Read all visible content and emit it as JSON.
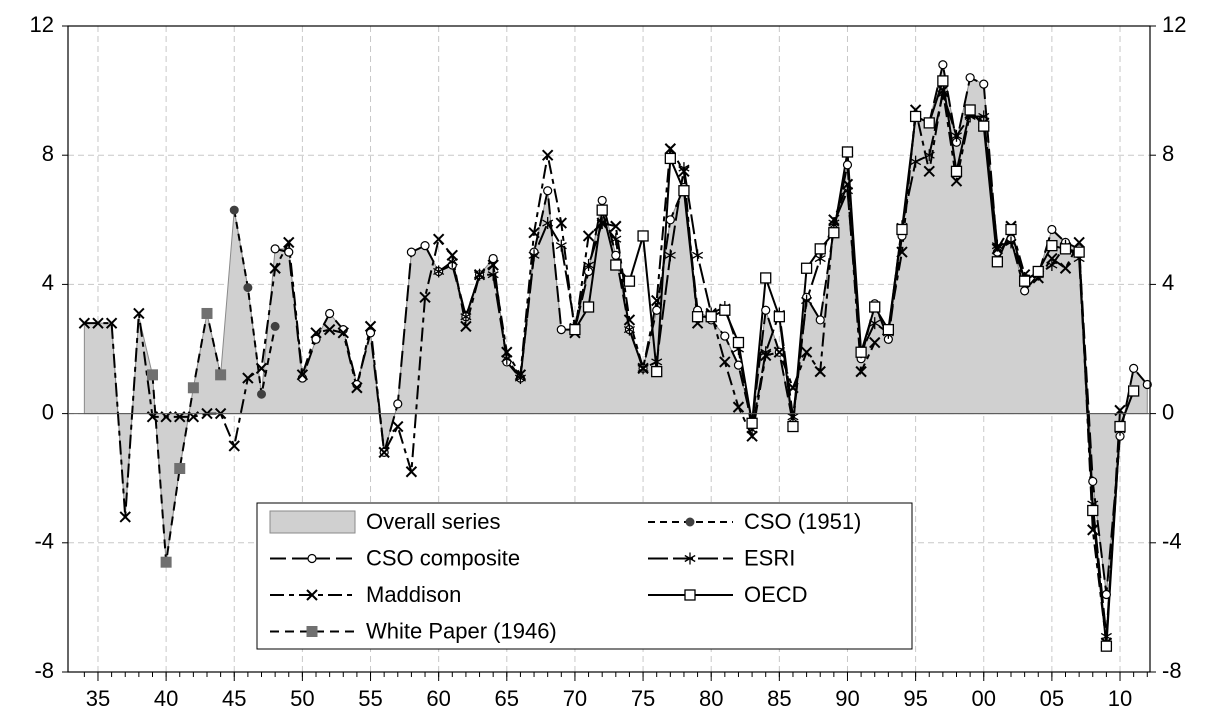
{
  "chart_data": {
    "type": "line",
    "x": [
      1934,
      1935,
      1936,
      1937,
      1938,
      1939,
      1940,
      1941,
      1942,
      1943,
      1944,
      1945,
      1946,
      1947,
      1948,
      1949,
      1950,
      1951,
      1952,
      1953,
      1954,
      1955,
      1956,
      1957,
      1958,
      1959,
      1960,
      1961,
      1962,
      1963,
      1964,
      1965,
      1966,
      1967,
      1968,
      1969,
      1970,
      1971,
      1972,
      1973,
      1974,
      1975,
      1976,
      1977,
      1978,
      1979,
      1980,
      1981,
      1982,
      1983,
      1984,
      1985,
      1986,
      1987,
      1988,
      1989,
      1990,
      1991,
      1992,
      1993,
      1994,
      1995,
      1996,
      1997,
      1998,
      1999,
      2000,
      2001,
      2002,
      2003,
      2004,
      2005,
      2006,
      2007,
      2008,
      2009,
      2010,
      2011,
      2012
    ],
    "xlim": [
      1932.8,
      2012.2
    ],
    "xticks": [
      {
        "value": 1935,
        "label": "35"
      },
      {
        "value": 1940,
        "label": "40"
      },
      {
        "value": 1945,
        "label": "45"
      },
      {
        "value": 1950,
        "label": "50"
      },
      {
        "value": 1955,
        "label": "55"
      },
      {
        "value": 1960,
        "label": "60"
      },
      {
        "value": 1965,
        "label": "65"
      },
      {
        "value": 1970,
        "label": "70"
      },
      {
        "value": 1975,
        "label": "75"
      },
      {
        "value": 1980,
        "label": "80"
      },
      {
        "value": 1985,
        "label": "85"
      },
      {
        "value": 1990,
        "label": "90"
      },
      {
        "value": 1995,
        "label": "95"
      },
      {
        "value": 2000,
        "label": "00"
      },
      {
        "value": 2005,
        "label": "05"
      },
      {
        "value": 2010,
        "label": "10"
      }
    ],
    "ylim": [
      -8,
      12
    ],
    "yticks": [
      -8,
      -4,
      0,
      4,
      8,
      12
    ],
    "y2lim": [
      -8,
      12
    ],
    "y2ticks": [
      -8,
      -4,
      0,
      4,
      8,
      12
    ],
    "grid": true,
    "legend": "lower-center",
    "series": [
      {
        "name": "Overall series",
        "color": "#d0d0d0",
        "fill": true,
        "values": [
          2.8,
          2.8,
          2.8,
          -3.2,
          3.0,
          1.2,
          -4.6,
          -1.7,
          0.8,
          3.1,
          1.2,
          6.3,
          3.9,
          0.6,
          5.1,
          5.1,
          1.1,
          2.3,
          3.1,
          2.6,
          0.9,
          2.5,
          -1.2,
          0.3,
          5.0,
          5.2,
          4.4,
          4.6,
          3.0,
          4.3,
          4.8,
          1.6,
          1.1,
          5.0,
          6.9,
          2.6,
          2.6,
          4.4,
          6.6,
          4.9,
          2.6,
          1.4,
          3.2,
          6.0,
          7.0,
          3.2,
          2.9,
          2.4,
          1.5,
          -0.3,
          3.2,
          1.9,
          -0.3,
          3.6,
          2.9,
          5.7,
          7.7,
          1.7,
          3.4,
          2.3,
          5.5,
          9.2,
          9.0,
          10.8,
          8.4,
          10.4,
          10.2,
          5.0,
          5.4,
          3.8,
          4.3,
          5.7,
          5.3,
          5.1,
          -2.1,
          -5.6,
          -0.7,
          1.4,
          0.9
        ]
      },
      {
        "name": "CSO (1951)",
        "color": "#404040",
        "dash": "7,5",
        "marker": "dot",
        "values": [
          null,
          null,
          null,
          null,
          null,
          null,
          null,
          null,
          null,
          null,
          null,
          6.3,
          3.9,
          0.6,
          2.7,
          null,
          null,
          null,
          null,
          null,
          null,
          null,
          null,
          null,
          null,
          null,
          null,
          null,
          null,
          null,
          null,
          null,
          null,
          null,
          null,
          null,
          null,
          null,
          null,
          null,
          null,
          null,
          null,
          null,
          null,
          null,
          null,
          null,
          null,
          null,
          null,
          null,
          null,
          null,
          null,
          null,
          null,
          null,
          null,
          null,
          null,
          null,
          null,
          null,
          null,
          null,
          null,
          null,
          null,
          null,
          null,
          null,
          null,
          null,
          null,
          null,
          null,
          null,
          null
        ]
      },
      {
        "name": "CSO composite",
        "color": "#000000",
        "dash": "16,6",
        "marker": "circle",
        "values": [
          null,
          null,
          null,
          null,
          null,
          null,
          null,
          null,
          null,
          null,
          null,
          null,
          null,
          null,
          5.1,
          5.0,
          1.1,
          2.3,
          3.1,
          2.6,
          0.9,
          2.5,
          -1.2,
          0.3,
          5.0,
          5.2,
          4.4,
          4.6,
          3.0,
          4.3,
          4.8,
          1.6,
          1.1,
          5.0,
          6.9,
          2.6,
          2.6,
          4.4,
          6.6,
          4.9,
          2.6,
          1.4,
          3.2,
          6.0,
          7.0,
          3.2,
          2.9,
          2.4,
          1.5,
          -0.3,
          3.2,
          1.9,
          -0.3,
          3.6,
          2.9,
          5.7,
          7.7,
          1.7,
          3.4,
          2.3,
          5.5,
          9.2,
          9.0,
          10.8,
          8.4,
          10.4,
          10.2,
          5.0,
          5.4,
          3.8,
          4.3,
          5.7,
          5.3,
          5.1,
          -2.1,
          -5.6,
          -0.7,
          1.4,
          0.9
        ]
      },
      {
        "name": "ESRI",
        "color": "#000000",
        "dash": "20,5",
        "marker": "star",
        "values": [
          null,
          null,
          null,
          null,
          null,
          null,
          null,
          null,
          null,
          null,
          null,
          null,
          null,
          null,
          null,
          null,
          null,
          null,
          null,
          null,
          null,
          null,
          null,
          null,
          null,
          null,
          4.4,
          4.7,
          3.0,
          4.3,
          4.3,
          1.7,
          1.1,
          4.9,
          5.9,
          5.2,
          2.7,
          4.6,
          5.9,
          5.4,
          2.6,
          1.4,
          1.6,
          4.9,
          7.6,
          4.9,
          3.1,
          3.3,
          2.0,
          -0.5,
          1.9,
          3.1,
          -0.1,
          3.5,
          4.8,
          5.9,
          6.9,
          1.9,
          2.8,
          2.5,
          5.8,
          7.8,
          8.0,
          9.9,
          8.6,
          9.2,
          9.2,
          5.2,
          5.3,
          4.2,
          4.3,
          4.6,
          5.2,
          4.8,
          -2.8,
          -6.9,
          -0.5,
          null,
          null
        ]
      },
      {
        "name": "Maddison",
        "color": "#000000",
        "dash": "14,5,5,5",
        "marker": "x",
        "values": [
          2.8,
          2.8,
          2.8,
          -3.2,
          3.1,
          -0.1,
          -0.1,
          -0.1,
          -0.1,
          0.0,
          0.0,
          -1.0,
          1.1,
          1.4,
          4.5,
          5.3,
          1.2,
          2.5,
          2.6,
          2.5,
          0.8,
          2.7,
          -1.2,
          -0.4,
          -1.8,
          3.6,
          5.4,
          4.9,
          2.7,
          4.3,
          4.6,
          1.9,
          1.2,
          5.6,
          8.0,
          5.9,
          2.5,
          5.5,
          5.9,
          5.8,
          2.9,
          1.4,
          3.5,
          8.2,
          7.5,
          2.8,
          3.1,
          1.6,
          0.2,
          -0.7,
          1.8,
          1.9,
          0.8,
          1.9,
          1.3,
          6.0,
          7.1,
          1.3,
          2.2,
          2.6,
          5.0,
          9.4,
          7.5,
          10.0,
          7.2,
          9.3,
          9.0,
          5.1,
          5.8,
          4.3,
          4.2,
          4.8,
          4.5,
          5.3,
          -3.6,
          -7.1,
          0.1,
          null,
          null
        ]
      },
      {
        "name": "OECD",
        "color": "#000000",
        "dash": "none",
        "marker": "square",
        "values": [
          null,
          null,
          null,
          null,
          null,
          null,
          null,
          null,
          null,
          null,
          null,
          null,
          null,
          null,
          null,
          null,
          null,
          null,
          null,
          null,
          null,
          null,
          null,
          null,
          null,
          null,
          null,
          null,
          null,
          null,
          null,
          null,
          null,
          null,
          null,
          null,
          2.6,
          3.3,
          6.3,
          4.6,
          4.1,
          5.5,
          1.3,
          7.9,
          6.9,
          3.0,
          3.0,
          3.2,
          2.2,
          -0.3,
          4.2,
          3.0,
          -0.4,
          4.5,
          5.1,
          5.6,
          8.1,
          1.9,
          3.3,
          2.6,
          5.7,
          9.2,
          9.0,
          10.3,
          7.5,
          9.4,
          8.9,
          4.7,
          5.7,
          4.1,
          4.4,
          5.2,
          5.1,
          5.0,
          -3.0,
          -7.2,
          -0.4,
          0.7,
          null
        ]
      },
      {
        "name": "White Paper (1946)",
        "color": "#707070",
        "dash": "9,6",
        "marker": "filled-square",
        "values": [
          null,
          null,
          null,
          null,
          null,
          1.2,
          -4.6,
          -1.7,
          0.8,
          3.1,
          1.2,
          null,
          null,
          null,
          null,
          null,
          null,
          null,
          null,
          null,
          null,
          null,
          null,
          null,
          null,
          null,
          null,
          null,
          null,
          null,
          null,
          null,
          null,
          null,
          null,
          null,
          null,
          null,
          null,
          null,
          null,
          null,
          null,
          null,
          null,
          null,
          null,
          null,
          null,
          null,
          null,
          null,
          null,
          null,
          null,
          null,
          null,
          null,
          null,
          null,
          null,
          null,
          null,
          null,
          null,
          null,
          null,
          null,
          null,
          null,
          null,
          null,
          null,
          null,
          null,
          null,
          null,
          null,
          null
        ]
      }
    ]
  }
}
